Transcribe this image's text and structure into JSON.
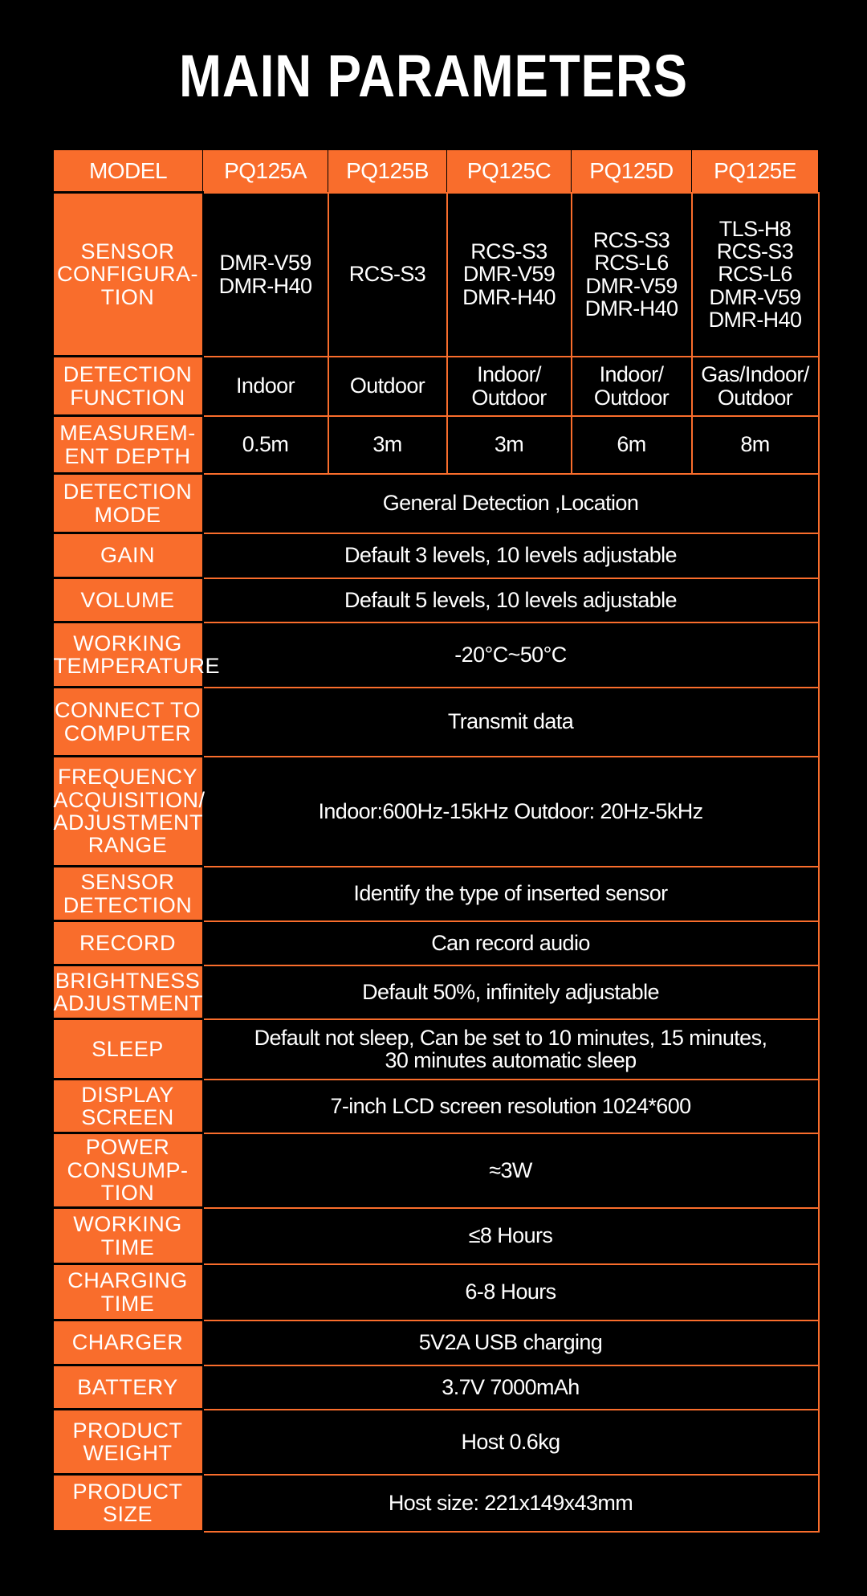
{
  "title": "MAIN PARAMETERS",
  "header": {
    "label": "MODEL",
    "models": [
      "PQ125A",
      "PQ125B",
      "PQ125C",
      "PQ125D",
      "PQ125E"
    ]
  },
  "per_model_rows": [
    {
      "label": "SENSOR\nCONFIGURA-\nTION",
      "values": [
        "DMR-V59\nDMR-H40",
        "RCS-S3",
        "RCS-S3\nDMR-V59\nDMR-H40",
        "RCS-S3\nRCS-L6\nDMR-V59\nDMR-H40",
        "TLS-H8\nRCS-S3\nRCS-L6\nDMR-V59\nDMR-H40"
      ]
    },
    {
      "label": "DETECTION\nFUNCTION",
      "values": [
        "Indoor",
        "Outdoor",
        "Indoor/\nOutdoor",
        "Indoor/\nOutdoor",
        "Gas/Indoor/\nOutdoor"
      ]
    },
    {
      "label": "MEASUREM-\nENT DEPTH",
      "values": [
        "0.5m",
        "3m",
        "3m",
        "6m",
        "8m"
      ]
    }
  ],
  "shared_rows": [
    {
      "label": "DETECTION\nMODE",
      "value": "General Detection ,Location"
    },
    {
      "label": "GAIN",
      "value": "Default 3 levels, 10 levels adjustable"
    },
    {
      "label": "VOLUME",
      "value": "Default 5 levels, 10 levels adjustable"
    },
    {
      "label": "WORKING\nTEMPERATURE",
      "value": "-20°C~50°C"
    },
    {
      "label": "CONNECT TO\nCOMPUTER",
      "value": "Transmit data"
    },
    {
      "label": "FREQUENCY\nACQUISITION/\nADJUSTMENT\nRANGE",
      "value": "Indoor:600Hz-15kHz Outdoor: 20Hz-5kHz"
    },
    {
      "label": "SENSOR\nDETECTION",
      "value": "Identify the type of inserted sensor"
    },
    {
      "label": "RECORD",
      "value": "Can record audio"
    },
    {
      "label": "BRIGHTNESS\nADJUSTMENT",
      "value": "Default 50%, infinitely adjustable"
    },
    {
      "label": "SLEEP",
      "value": "Default not sleep, Can be set to 10 minutes, 15 minutes,\n30 minutes automatic sleep"
    },
    {
      "label": "DISPLAY\nSCREEN",
      "value": "7-inch LCD screen resolution 1024*600"
    },
    {
      "label": "POWER\nCONSUMP-\nTION",
      "value": "≈3W"
    },
    {
      "label": "WORKING\nTIME",
      "value": "≤8 Hours"
    },
    {
      "label": "CHARGING\nTIME",
      "value": "6-8 Hours"
    },
    {
      "label": "CHARGER",
      "value": "5V2A USB charging"
    },
    {
      "label": "BATTERY",
      "value": "3.7V  7000mAh"
    },
    {
      "label": "PRODUCT\nWEIGHT",
      "value": "Host 0.6kg"
    },
    {
      "label": "PRODUCT\nSIZE",
      "value": "Host size: 221x149x43mm"
    }
  ],
  "colors": {
    "accent": "#F96D2C",
    "background": "#000000",
    "text": "#FFFFFF"
  }
}
